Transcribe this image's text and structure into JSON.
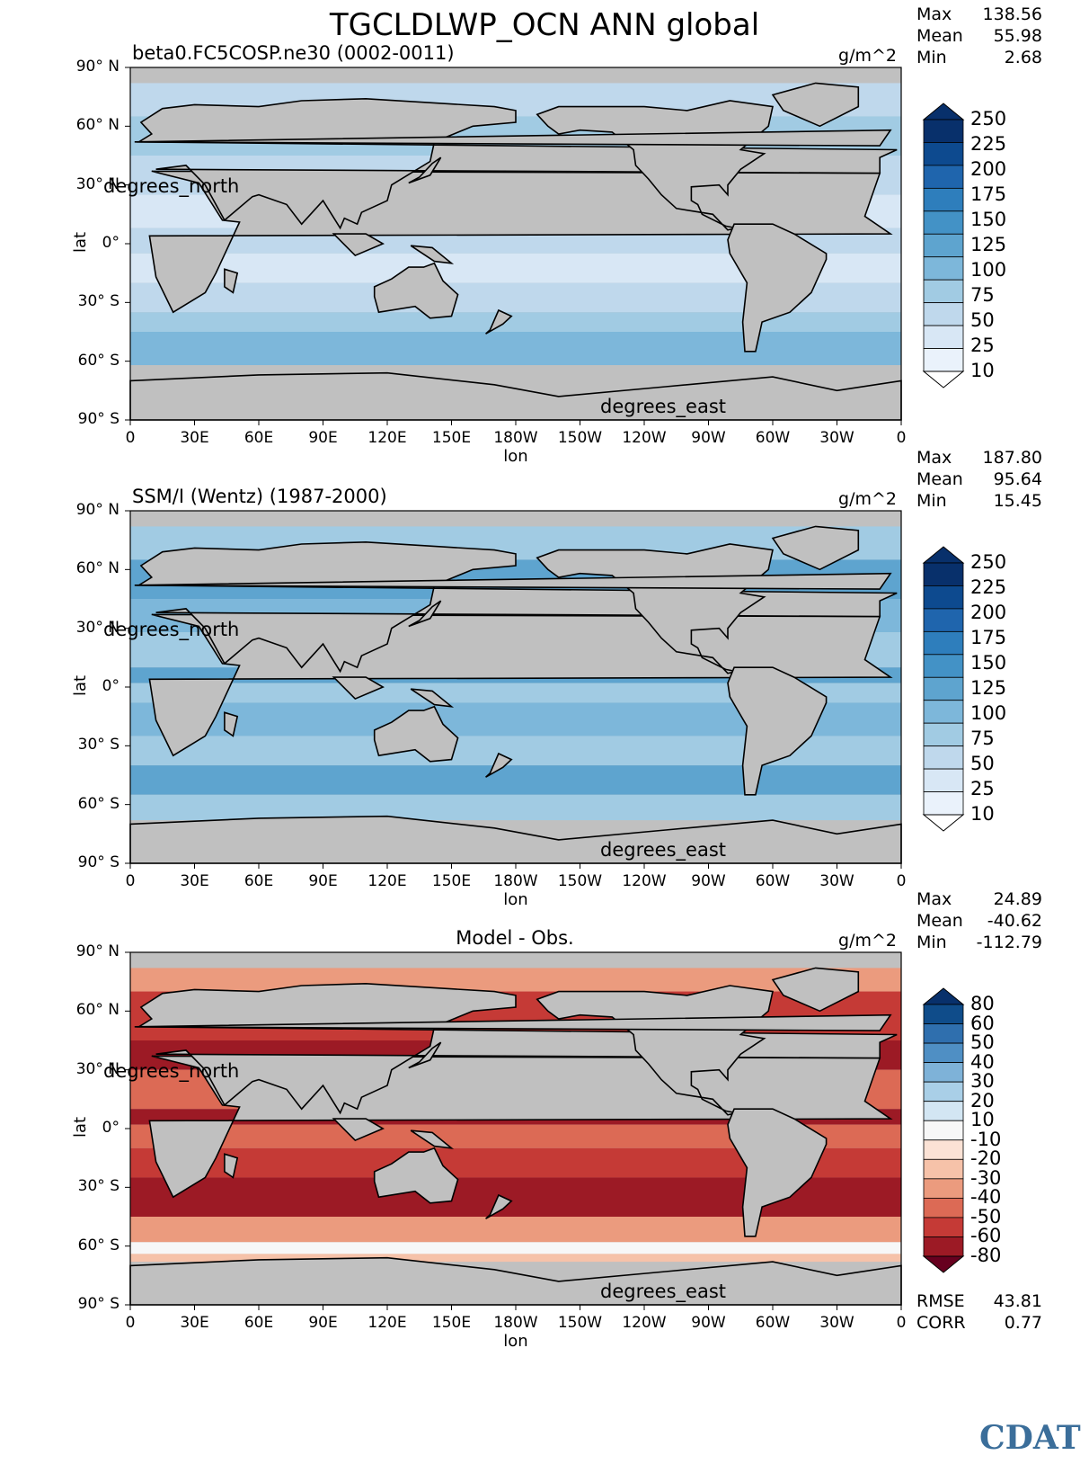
{
  "title": "TGCLDLWP_OCN ANN global",
  "logo": "CDAT",
  "x_ticks": [
    "0",
    "30E",
    "60E",
    "90E",
    "120E",
    "150E",
    "180W",
    "150W",
    "120W",
    "90W",
    "60W",
    "30W",
    "0"
  ],
  "y_ticks": [
    "90° N",
    "60° N",
    "30° N",
    "0°",
    "30° S",
    "60° S",
    "90° S"
  ],
  "colors": {
    "land": "#c0c0c0",
    "coast": "#000000"
  },
  "panels": [
    {
      "id": "model",
      "subtitle": "beta0.FC5COSP.ne30 (0002-0011)",
      "units": "g/m^2",
      "ylabel": "lat",
      "xlabel": "lon",
      "y_unit_label": "degrees_north",
      "x_unit_label": "degrees_east",
      "stats": {
        "max": "138.56",
        "mean": "55.98",
        "min": "2.68"
      },
      "stat_labels": [
        "Max",
        "Mean",
        "Min"
      ],
      "colorbar": {
        "labels": [
          "250",
          "225",
          "200",
          "175",
          "150",
          "125",
          "100",
          "75",
          "50",
          "25",
          "10"
        ],
        "colors": [
          "#08306b",
          "#0d4a8f",
          "#1f65ad",
          "#2e7ebc",
          "#4392c6",
          "#5ea4cf",
          "#7db7da",
          "#a1cbe3",
          "#bfd8ec",
          "#d8e7f5",
          "#eaf2fb"
        ],
        "top_arrow": "#08306b",
        "bottom_arrow": "#ffffff"
      }
    },
    {
      "id": "obs",
      "subtitle": "SSM/I (Wentz) (1987-2000)",
      "units": "g/m^2",
      "ylabel": "lat",
      "xlabel": "lon",
      "y_unit_label": "degrees_north",
      "x_unit_label": "degrees_east",
      "stats": {
        "max": "187.80",
        "mean": "95.64",
        "min": "15.45"
      },
      "stat_labels": [
        "Max",
        "Mean",
        "Min"
      ],
      "colorbar": {
        "labels": [
          "250",
          "225",
          "200",
          "175",
          "150",
          "125",
          "100",
          "75",
          "50",
          "25",
          "10"
        ],
        "colors": [
          "#08306b",
          "#0d4a8f",
          "#1f65ad",
          "#2e7ebc",
          "#4392c6",
          "#5ea4cf",
          "#7db7da",
          "#a1cbe3",
          "#bfd8ec",
          "#d8e7f5",
          "#eaf2fb"
        ],
        "top_arrow": "#08306b",
        "bottom_arrow": "#ffffff"
      }
    },
    {
      "id": "diff",
      "subtitle": "Model - Obs.",
      "units": "g/m^2",
      "ylabel": "lat",
      "xlabel": "lon",
      "y_unit_label": "degrees_north",
      "x_unit_label": "degrees_east",
      "stats": {
        "max": "24.89",
        "mean": "-40.62",
        "min": "-112.79"
      },
      "stat_labels": [
        "Max",
        "Mean",
        "Min"
      ],
      "colorbar": {
        "labels": [
          "80",
          "60",
          "50",
          "40",
          "30",
          "20",
          "10",
          "-10",
          "-20",
          "-30",
          "-40",
          "-50",
          "-60",
          "-80"
        ],
        "colors": [
          "#0f4c8a",
          "#2f6fae",
          "#4f8fc4",
          "#7eb2d8",
          "#a9cfe7",
          "#d3e6f3",
          "#f7f7f7",
          "#fbe2d5",
          "#f6c2a9",
          "#eb9b7e",
          "#dc6a55",
          "#c53a36",
          "#9c1a25"
        ],
        "top_arrow": "#08306b",
        "bottom_arrow": "#67001f"
      },
      "extra_stats": [
        {
          "label": "RMSE",
          "value": "43.81"
        },
        {
          "label": "CORR",
          "value": "0.77"
        }
      ]
    }
  ],
  "chart_data": [
    {
      "type": "heatmap",
      "name": "model",
      "title": "beta0.FC5COSP.ne30 (0002-0011)",
      "xlabel": "lon",
      "ylabel": "lat",
      "xlim": [
        0,
        360
      ],
      "ylim": [
        -90,
        90
      ],
      "units": "g/m^2",
      "levels": [
        10,
        25,
        50,
        75,
        100,
        125,
        150,
        175,
        200,
        225,
        250
      ],
      "stats": {
        "max": 138.56,
        "mean": 55.98,
        "min": 2.68
      }
    },
    {
      "type": "heatmap",
      "name": "obs",
      "title": "SSM/I (Wentz) (1987-2000)",
      "xlabel": "lon",
      "ylabel": "lat",
      "xlim": [
        0,
        360
      ],
      "ylim": [
        -90,
        90
      ],
      "units": "g/m^2",
      "levels": [
        10,
        25,
        50,
        75,
        100,
        125,
        150,
        175,
        200,
        225,
        250
      ],
      "stats": {
        "max": 187.8,
        "mean": 95.64,
        "min": 15.45
      }
    },
    {
      "type": "heatmap",
      "name": "difference",
      "title": "Model - Obs.",
      "xlabel": "lon",
      "ylabel": "lat",
      "xlim": [
        0,
        360
      ],
      "ylim": [
        -90,
        90
      ],
      "units": "g/m^2",
      "levels": [
        -80,
        -60,
        -50,
        -40,
        -30,
        -20,
        -10,
        10,
        20,
        30,
        40,
        50,
        60,
        80
      ],
      "stats": {
        "max": 24.89,
        "mean": -40.62,
        "min": -112.79,
        "rmse": 43.81,
        "corr": 0.77
      }
    }
  ]
}
